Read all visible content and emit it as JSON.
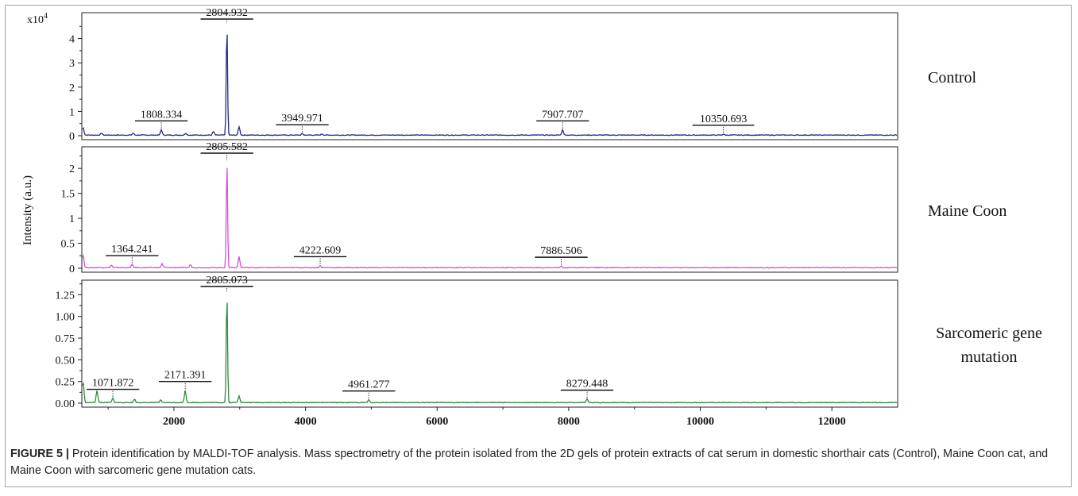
{
  "figure": {
    "label": "FIGURE 5 |",
    "caption_text": "Protein identification by MALDI-TOF analysis. Mass spectrometry of the protein isolated from the 2D gels of protein extracts of cat serum in domestic shorthair cats (Control), Maine Coon cat, and Maine Coon with sarcomeric gene mutation cats."
  },
  "chart_data": {
    "type": "line",
    "ylabel": "Intensity (a.u.)",
    "xlim": [
      600,
      13000
    ],
    "x_ticks": [
      2000,
      4000,
      6000,
      8000,
      10000,
      12000
    ],
    "x_tick_labels": [
      "2000",
      "4000",
      "6000",
      "8000",
      "10000",
      "12000"
    ],
    "panels": [
      {
        "name": "Control",
        "color": "#1f2a8a",
        "y_multiplier": "x10",
        "y_multiplier_exp": "4",
        "ylim": [
          0,
          5.0
        ],
        "y_ticks": [
          0,
          1,
          2,
          3,
          4
        ],
        "y_tick_labels": [
          "0",
          "1",
          "2",
          "3",
          "4"
        ],
        "peaks": [
          {
            "x": 620,
            "y": 0.3
          },
          {
            "x": 900,
            "y": 0.08
          },
          {
            "x": 1380,
            "y": 0.08
          },
          {
            "x": 1808.334,
            "y": 0.22
          },
          {
            "x": 2180,
            "y": 0.08
          },
          {
            "x": 2600,
            "y": 0.15
          },
          {
            "x": 2804.932,
            "y": 4.6
          },
          {
            "x": 2990,
            "y": 0.35
          },
          {
            "x": 3949.971,
            "y": 0.06
          },
          {
            "x": 4250,
            "y": 0.05
          },
          {
            "x": 7907.707,
            "y": 0.22
          },
          {
            "x": 10350.693,
            "y": 0.04
          }
        ],
        "annotations": [
          {
            "label": "2804.932",
            "x": 2804.932,
            "span": 400
          },
          {
            "label": "1808.334",
            "x": 1808.334,
            "span": 400
          },
          {
            "label": "3949.971",
            "x": 3949.971,
            "span": 400
          },
          {
            "label": "7907.707",
            "x": 7907.707,
            "span": 400
          },
          {
            "label": "10350.693",
            "x": 10350.693,
            "span": 470
          }
        ]
      },
      {
        "name": "Maine Coon",
        "color": "#d94fd9",
        "y_multiplier": "",
        "y_multiplier_exp": "",
        "ylim": [
          0,
          2.4
        ],
        "y_ticks": [
          0,
          0.5,
          1,
          1.5,
          2
        ],
        "y_tick_labels": [
          "0",
          "0.5",
          "1",
          "1.5",
          "2"
        ],
        "peaks": [
          {
            "x": 620,
            "y": 0.25
          },
          {
            "x": 1050,
            "y": 0.05
          },
          {
            "x": 1364.241,
            "y": 0.06
          },
          {
            "x": 1820,
            "y": 0.08
          },
          {
            "x": 2250,
            "y": 0.06
          },
          {
            "x": 2805.582,
            "y": 2.15
          },
          {
            "x": 2990,
            "y": 0.22
          },
          {
            "x": 4222.609,
            "y": 0.04
          },
          {
            "x": 7886.506,
            "y": 0.03
          }
        ],
        "annotations": [
          {
            "label": "2805.582",
            "x": 2805.582,
            "span": 400
          },
          {
            "label": "1364.241",
            "x": 1364.241,
            "span": 400
          },
          {
            "label": "4222.609",
            "x": 4222.609,
            "span": 400
          },
          {
            "label": "7886.506",
            "x": 7886.506,
            "span": 400
          }
        ]
      },
      {
        "name": "Sarcomeric gene mutation",
        "name_lines": [
          "Sarcomeric gene",
          "mutation"
        ],
        "color": "#2e8b3c",
        "y_multiplier": "",
        "y_multiplier_exp": "",
        "ylim": [
          0,
          1.4
        ],
        "y_ticks": [
          0,
          0.25,
          0.5,
          0.75,
          1.0,
          1.25
        ],
        "y_tick_labels": [
          "0.00",
          "0.25",
          "0.50",
          "0.75",
          "1.00",
          "1.25"
        ],
        "peaks": [
          {
            "x": 620,
            "y": 0.24
          },
          {
            "x": 830,
            "y": 0.14
          },
          {
            "x": 1071.872,
            "y": 0.05
          },
          {
            "x": 1400,
            "y": 0.04
          },
          {
            "x": 1800,
            "y": 0.03
          },
          {
            "x": 2171.391,
            "y": 0.14
          },
          {
            "x": 2805.073,
            "y": 1.28
          },
          {
            "x": 2990,
            "y": 0.08
          },
          {
            "x": 4961.277,
            "y": 0.03
          },
          {
            "x": 8279.448,
            "y": 0.04
          }
        ],
        "annotations": [
          {
            "label": "2805.073",
            "x": 2805.073,
            "span": 400
          },
          {
            "label": "1071.872",
            "x": 1071.872,
            "span": 400
          },
          {
            "label": "2171.391",
            "x": 2171.391,
            "span": 400
          },
          {
            "label": "4961.277",
            "x": 4961.277,
            "span": 400
          },
          {
            "label": "8279.448",
            "x": 8279.448,
            "span": 400
          }
        ]
      }
    ]
  }
}
